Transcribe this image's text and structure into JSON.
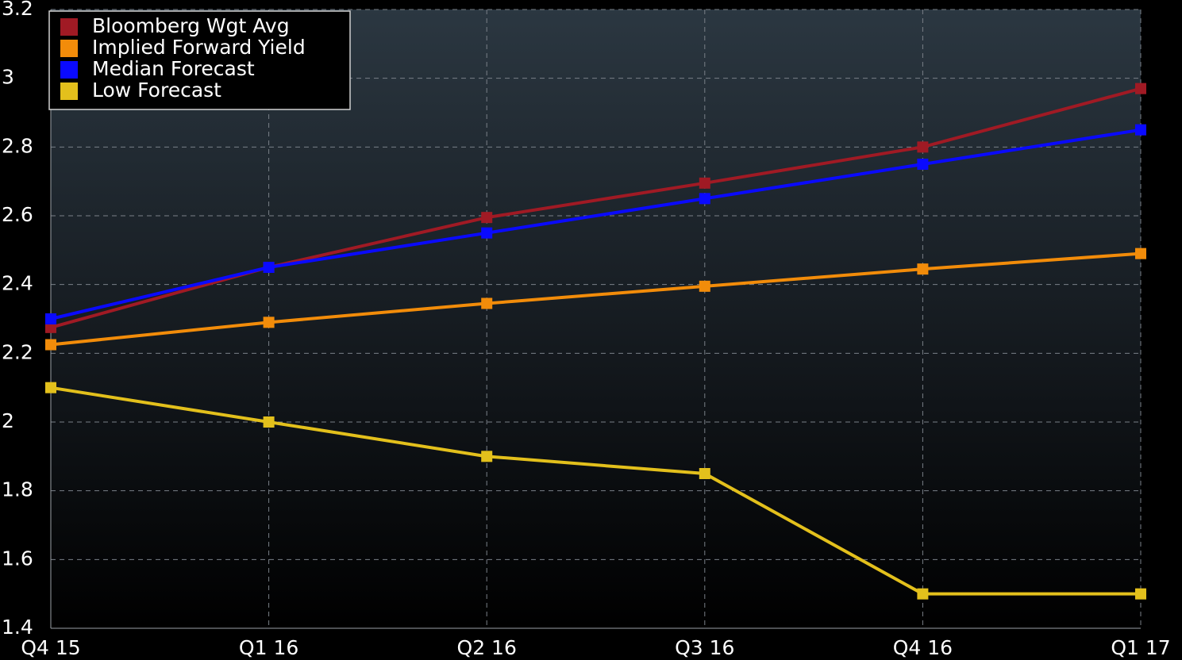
{
  "chart_data": {
    "type": "line",
    "categories": [
      "Q4 15",
      "Q1 16",
      "Q2 16",
      "Q3 16",
      "Q4 16",
      "Q1 17"
    ],
    "series": [
      {
        "name": "Bloomberg Wgt Avg",
        "color": "#a01a24",
        "values": [
          2.275,
          2.45,
          2.595,
          2.695,
          2.8,
          2.97
        ]
      },
      {
        "name": "Implied Forward Yield",
        "color": "#f28c0a",
        "values": [
          2.225,
          2.29,
          2.345,
          2.395,
          2.445,
          2.49
        ]
      },
      {
        "name": "Median Forecast",
        "color": "#0a0aff",
        "values": [
          2.3,
          2.45,
          2.55,
          2.65,
          2.75,
          2.85
        ]
      },
      {
        "name": "Low Forecast",
        "color": "#e3c01c",
        "values": [
          2.1,
          2.0,
          1.9,
          1.85,
          1.5,
          1.5
        ]
      }
    ],
    "ylim": [
      1.4,
      3.2
    ],
    "yticks": [
      1.4,
      1.6,
      1.8,
      2,
      2.2,
      2.4,
      2.6,
      2.8,
      3,
      3.2
    ],
    "grid": true,
    "legend": "top-left"
  }
}
